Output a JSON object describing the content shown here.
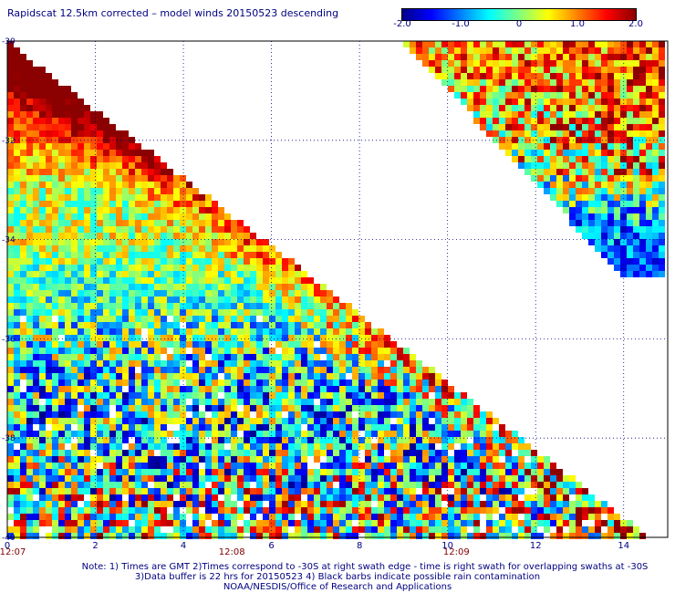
{
  "title": "Rapidscat 12.5km corrected – model winds 20150523 descending",
  "colorbar": {
    "min": -2.0,
    "max": 2.0,
    "tick_labels": [
      "-2.0",
      "-1.0",
      "0",
      "1.0",
      "2.0"
    ],
    "colors": [
      "#00008b",
      "#0000ff",
      "#0080ff",
      "#00ffff",
      "#80ff80",
      "#ffff00",
      "#ff8000",
      "#ff0000",
      "#8b0000"
    ]
  },
  "chart_data": {
    "type": "heatmap",
    "title": "Rapidscat 12.5km corrected – model winds 20150523 descending",
    "xlim": [
      0,
      15
    ],
    "ylim": [
      -40,
      -30
    ],
    "x_ticks": [
      "0",
      "2",
      "4",
      "6",
      "8",
      "10",
      "12",
      "14"
    ],
    "y_ticks": [
      "-30",
      "-32",
      "-34",
      "-36",
      "-38",
      "-40"
    ],
    "time_labels": [
      {
        "x": 0,
        "label": "12:07"
      },
      {
        "x": 5.1,
        "label": "12:08"
      },
      {
        "x": 10.2,
        "label": "12:09"
      }
    ],
    "grid": true,
    "swaths": [
      {
        "name": "left",
        "region": "lower-left triangle",
        "rows": [
          {
            "lat": -30.3,
            "value_range": [
              1.5,
              2.0
            ]
          },
          {
            "lat": -31.0,
            "value_range": [
              1.0,
              2.0
            ]
          },
          {
            "lat": -32.0,
            "value_range": [
              0.5,
              1.5
            ]
          },
          {
            "lat": -33.0,
            "value_range": [
              -0.5,
              1.0
            ]
          },
          {
            "lat": -34.0,
            "value_range": [
              -0.5,
              1.0
            ]
          },
          {
            "lat": -35.0,
            "value_range": [
              -1.0,
              0.5
            ]
          },
          {
            "lat": -36.0,
            "value_range": [
              -1.5,
              1.0
            ]
          },
          {
            "lat": -37.0,
            "value_range": [
              -2.0,
              1.0
            ]
          },
          {
            "lat": -38.0,
            "value_range": [
              -2.0,
              1.0
            ]
          },
          {
            "lat": -39.0,
            "value_range": [
              -2.0,
              2.0
            ]
          },
          {
            "lat": -40.0,
            "value_range": [
              -1.5,
              2.0
            ]
          }
        ]
      },
      {
        "name": "right",
        "region": "upper-right triangle",
        "rows": [
          {
            "lat": -30.3,
            "value_range": [
              0.0,
              2.0
            ]
          },
          {
            "lat": -31.5,
            "value_range": [
              -0.5,
              2.0
            ]
          },
          {
            "lat": -32.5,
            "value_range": [
              -1.0,
              2.0
            ]
          },
          {
            "lat": -33.5,
            "value_range": [
              -2.0,
              0.0
            ]
          },
          {
            "lat": -34.5,
            "value_range": [
              -2.0,
              -1.0
            ]
          }
        ]
      }
    ]
  },
  "notes": {
    "line1": "Note: 1) Times are GMT 2)Times correspond to -30S at right swath edge - time is right swath for overlapping swaths at -30S",
    "line2": "3)Data buffer is 22 hrs for 20150523 4) Black barbs indicate possible rain contamination",
    "line3": "NOAA/NESDIS/Office of Research and Applications"
  }
}
